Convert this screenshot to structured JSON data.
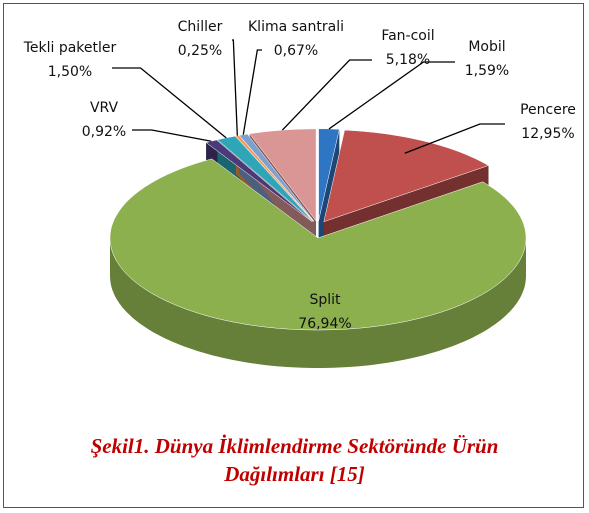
{
  "chart_data": {
    "type": "pie",
    "categories": [
      "Mobil",
      "Pencere",
      "Split",
      "VRV",
      "Tekli paketler",
      "Chiller",
      "Klima santrali",
      "Fan-coil"
    ],
    "values": [
      1.59,
      12.95,
      76.94,
      0.92,
      1.5,
      0.25,
      0.67,
      5.18
    ],
    "value_labels": [
      "1,59%",
      "12,95%",
      "76,94%",
      "0,92%",
      "1,50%",
      "0,25%",
      "0,67%",
      "5,18%"
    ],
    "colors": [
      "#2e75c4",
      "#c0504d",
      "#8db04f",
      "#4b3a7a",
      "#2fa6b8",
      "#f79646",
      "#7f9fcf",
      "#d99694"
    ],
    "caption": [
      "Şekil1. Dünya İklimlendirme Sektöründe Ürün",
      "Dağılımları [15]"
    ]
  }
}
